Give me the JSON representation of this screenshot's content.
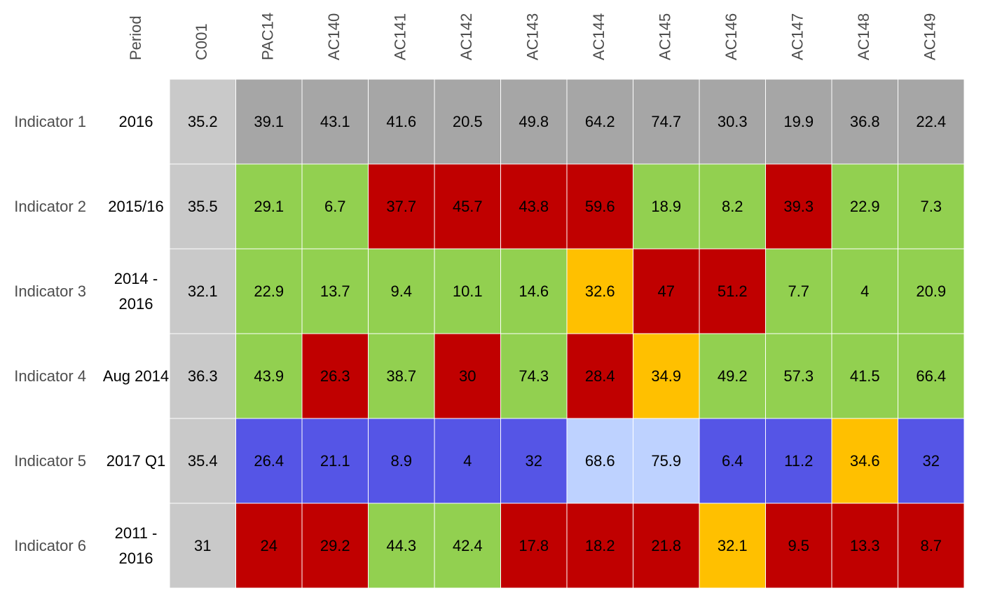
{
  "chart_data": {
    "type": "heatmap",
    "period_header": "Period",
    "columns": [
      "C001",
      "PAC14",
      "AC140",
      "AC141",
      "AC142",
      "AC143",
      "AC144",
      "AC145",
      "AC146",
      "AC147",
      "AC148",
      "AC149"
    ],
    "rows": [
      {
        "indicator": "Indicator 1",
        "period": "2016",
        "values": [
          35.2,
          39.1,
          43.1,
          41.6,
          20.5,
          49.8,
          64.2,
          74.7,
          30.3,
          19.9,
          36.8,
          22.4
        ],
        "status": [
          "benchmark",
          "neutral",
          "neutral",
          "neutral",
          "neutral",
          "neutral",
          "neutral",
          "neutral",
          "neutral",
          "neutral",
          "neutral",
          "neutral"
        ]
      },
      {
        "indicator": "Indicator 2",
        "period": "2015/16",
        "values": [
          35.5,
          29.1,
          6.7,
          37.7,
          45.7,
          43.8,
          59.6,
          18.9,
          8.2,
          39.3,
          22.9,
          7.3
        ],
        "status": [
          "benchmark",
          "better",
          "better",
          "worse",
          "worse",
          "worse",
          "worse",
          "better",
          "better",
          "worse",
          "better",
          "better"
        ]
      },
      {
        "indicator": "Indicator 3",
        "period": "2014 - 2016",
        "values": [
          32.1,
          22.9,
          13.7,
          9.4,
          10.1,
          14.6,
          32.6,
          47,
          51.2,
          7.7,
          4,
          20.9
        ],
        "status": [
          "benchmark",
          "better",
          "better",
          "better",
          "better",
          "better",
          "similar",
          "worse",
          "worse",
          "better",
          "better",
          "better"
        ]
      },
      {
        "indicator": "Indicator 4",
        "period": "Aug 2014",
        "values": [
          36.3,
          43.9,
          26.3,
          38.7,
          30,
          74.3,
          28.4,
          34.9,
          49.2,
          57.3,
          41.5,
          66.4
        ],
        "status": [
          "benchmark",
          "better",
          "worse",
          "better",
          "worse",
          "better",
          "worse",
          "similar",
          "better",
          "better",
          "better",
          "better"
        ]
      },
      {
        "indicator": "Indicator 5",
        "period": "2017 Q1",
        "values": [
          35.4,
          26.4,
          21.1,
          8.9,
          4,
          32,
          68.6,
          75.9,
          6.4,
          11.2,
          34.6,
          32
        ],
        "status": [
          "benchmark",
          "lower",
          "lower",
          "lower",
          "lower",
          "lower",
          "higher",
          "higher",
          "lower",
          "lower",
          "similar",
          "lower"
        ]
      },
      {
        "indicator": "Indicator 6",
        "period": "2011 - 2016",
        "values": [
          31,
          24,
          29.2,
          44.3,
          42.4,
          17.8,
          18.2,
          21.8,
          32.1,
          9.5,
          13.3,
          8.7
        ],
        "status": [
          "benchmark",
          "worse",
          "worse",
          "better",
          "better",
          "worse",
          "worse",
          "worse",
          "similar",
          "worse",
          "worse",
          "worse"
        ]
      }
    ],
    "colors": {
      "benchmark": "#c9c9c9",
      "neutral": "#a6a6a6",
      "better": "#92d050",
      "worse": "#c00000",
      "similar": "#ffc000",
      "lower": "#5555e6",
      "higher": "#bed2ff",
      "gridline": "#ffffff"
    }
  }
}
